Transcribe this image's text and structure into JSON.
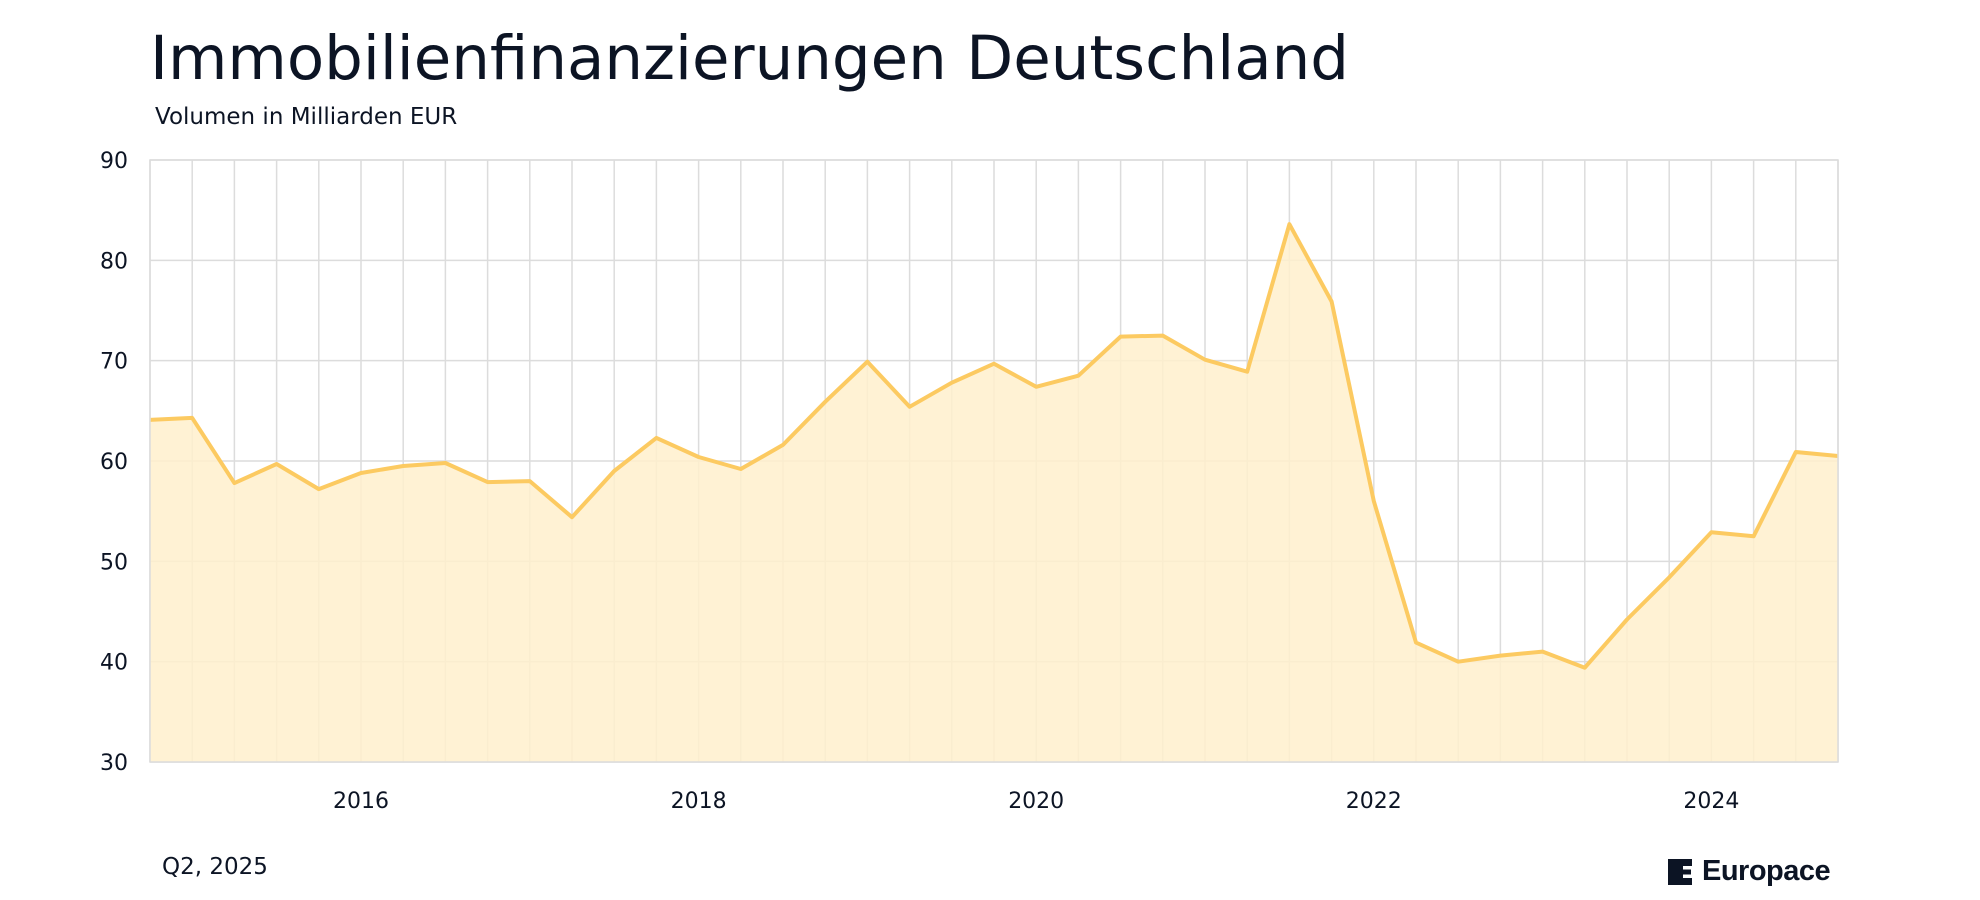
{
  "header": {
    "title": "Immobilienfinanzierungen Deutschland",
    "subtitle": "Volumen in Milliarden EUR"
  },
  "footer": {
    "note": "Q2, 2025",
    "brand": "Europace"
  },
  "colors": {
    "line": "#fcca61",
    "fill": "#fff0cc",
    "grid": "#dcdcdc",
    "text": "#0c1424"
  },
  "chart_data": {
    "type": "area",
    "title": "Immobilienfinanzierungen Deutschland",
    "subtitle": "Volumen in Milliarden EUR",
    "xlabel": "",
    "ylabel": "",
    "xlim": [
      2014.75,
      2024.75
    ],
    "ylim": [
      30,
      90
    ],
    "yticks": [
      30,
      40,
      50,
      60,
      70,
      80,
      90
    ],
    "xticks": [
      {
        "value": 2016,
        "label": "2016"
      },
      {
        "value": 2018,
        "label": "2018"
      },
      {
        "value": 2020,
        "label": "2020"
      },
      {
        "value": 2022,
        "label": "2022"
      },
      {
        "value": 2024,
        "label": "2024"
      }
    ],
    "grid": true,
    "legend": "none",
    "x": [
      2014.75,
      2015.0,
      2015.25,
      2015.5,
      2015.75,
      2016.0,
      2016.25,
      2016.5,
      2016.75,
      2017.0,
      2017.25,
      2017.5,
      2017.75,
      2018.0,
      2018.25,
      2018.5,
      2018.75,
      2019.0,
      2019.25,
      2019.5,
      2019.75,
      2020.0,
      2020.25,
      2020.5,
      2020.75,
      2021.0,
      2021.25,
      2021.5,
      2021.75,
      2022.0,
      2022.25,
      2022.5,
      2022.75,
      2023.0,
      2023.25,
      2023.5,
      2023.75,
      2024.0,
      2024.25,
      2024.5,
      2024.75
    ],
    "series": [
      {
        "values": [
          64.1,
          64.3,
          57.8,
          59.7,
          57.2,
          58.8,
          59.5,
          59.8,
          57.9,
          58.0,
          54.4,
          59.0,
          62.3,
          60.4,
          59.2,
          61.6,
          65.9,
          69.9,
          65.4,
          67.8,
          69.7,
          67.4,
          68.5,
          72.4,
          72.5,
          70.1,
          68.9,
          83.6,
          75.9,
          56.0,
          41.9,
          40.0,
          40.6,
          41.0,
          39.4,
          44.2,
          48.4,
          52.9,
          52.5,
          60.9,
          60.5
        ]
      }
    ]
  }
}
